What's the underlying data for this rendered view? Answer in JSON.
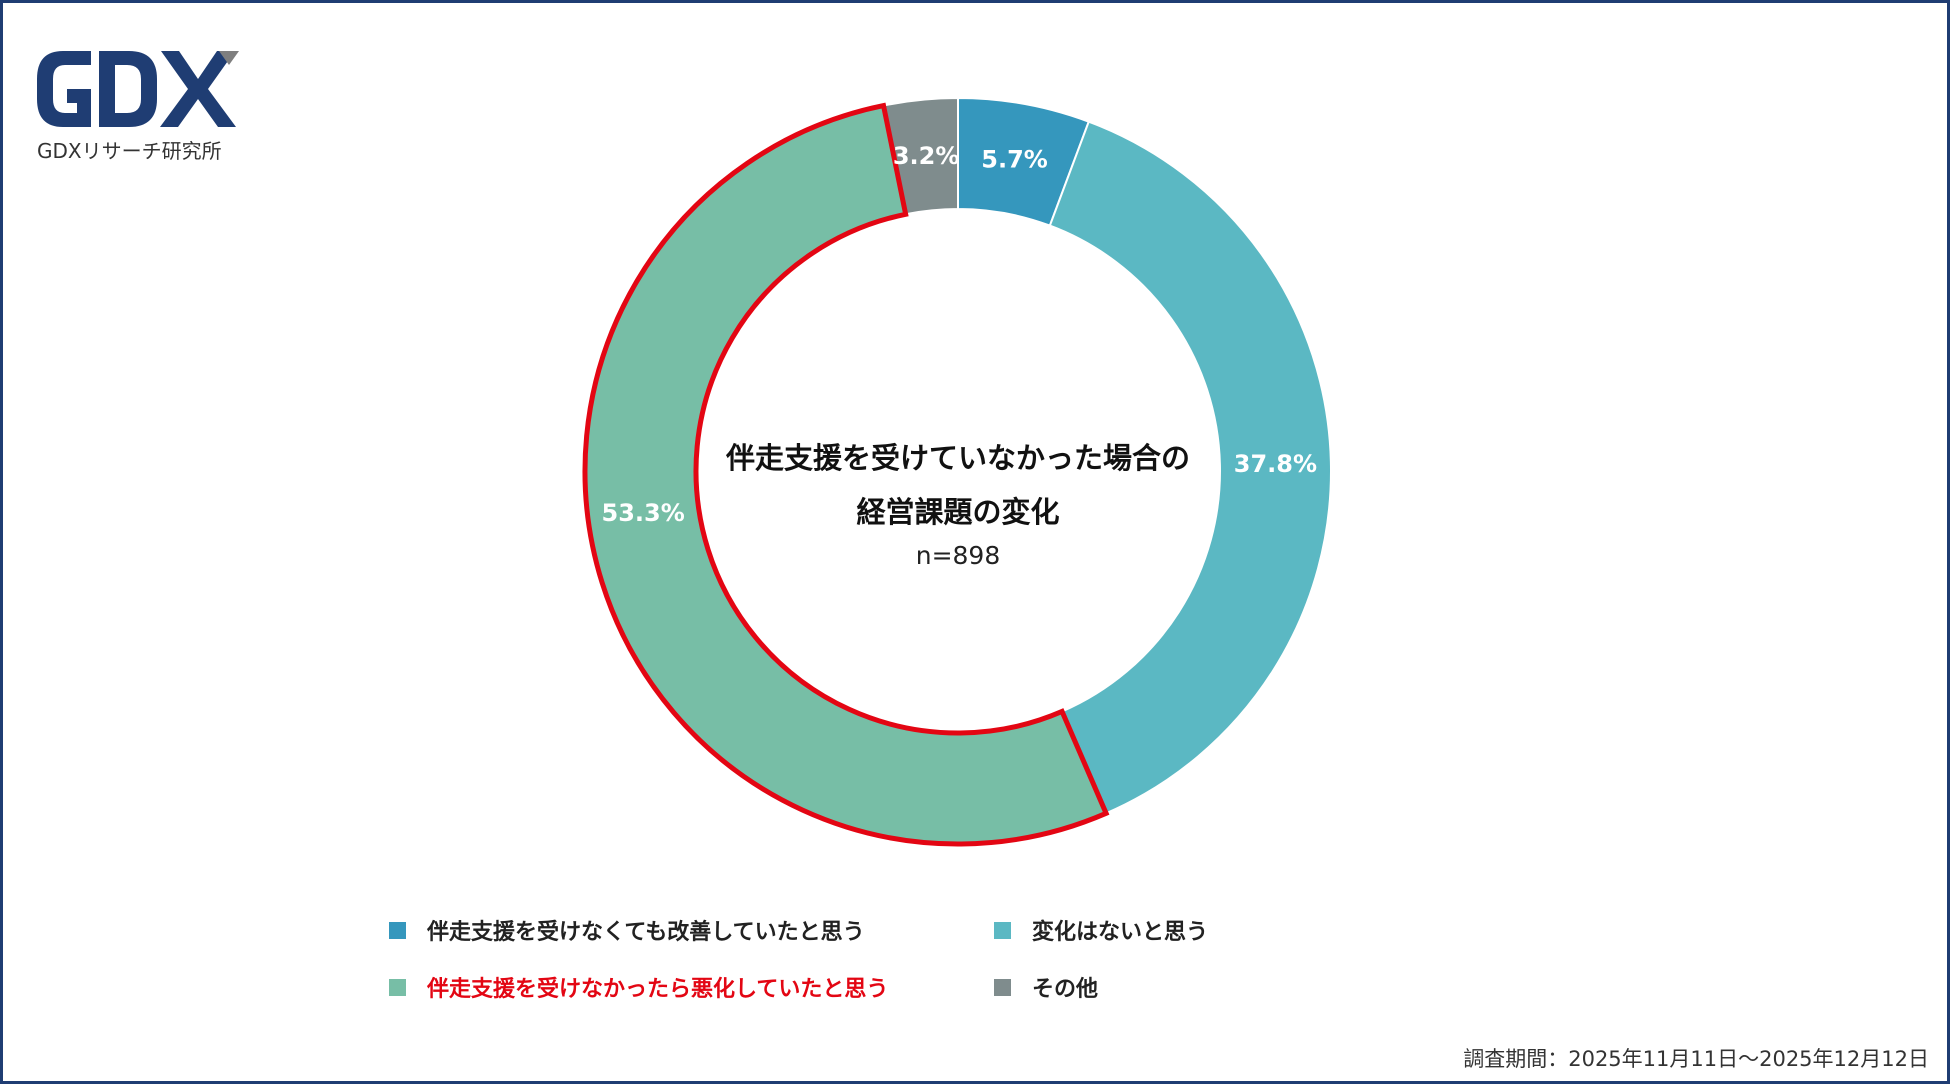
{
  "logo": {
    "icon": "gdx-logo-icon",
    "caption": "GDXリサーチ研究所",
    "color_primary": "#1f3d73",
    "color_accent": "#7f7f7f"
  },
  "chart_data": {
    "type": "pie",
    "donut": true,
    "center_title_lines": [
      "伴走支援を受けていなかった場合の",
      "経営課題の変化"
    ],
    "center_subtitle": "n=898",
    "slices": [
      {
        "label": "伴走支援を受けなくても改善していたと思う",
        "value": 5.7,
        "value_label": "5.7%",
        "color": "#3597bd"
      },
      {
        "label": "変化はないと思う",
        "value": 37.8,
        "value_label": "37.8%",
        "color": "#5bb8c3"
      },
      {
        "label": "伴走支援を受けなかったら悪化していたと思う",
        "value": 53.3,
        "value_label": "53.3%",
        "color": "#77bea6",
        "highlighted": true
      },
      {
        "label": "その他",
        "value": 3.2,
        "value_label": "3.2%",
        "color": "#7f8c8d"
      }
    ],
    "highlight_color": "#e30613",
    "legend_placement": "bottom"
  },
  "footer": {
    "survey_period": "調査期間：2025年11月11日～2025年12月12日"
  }
}
